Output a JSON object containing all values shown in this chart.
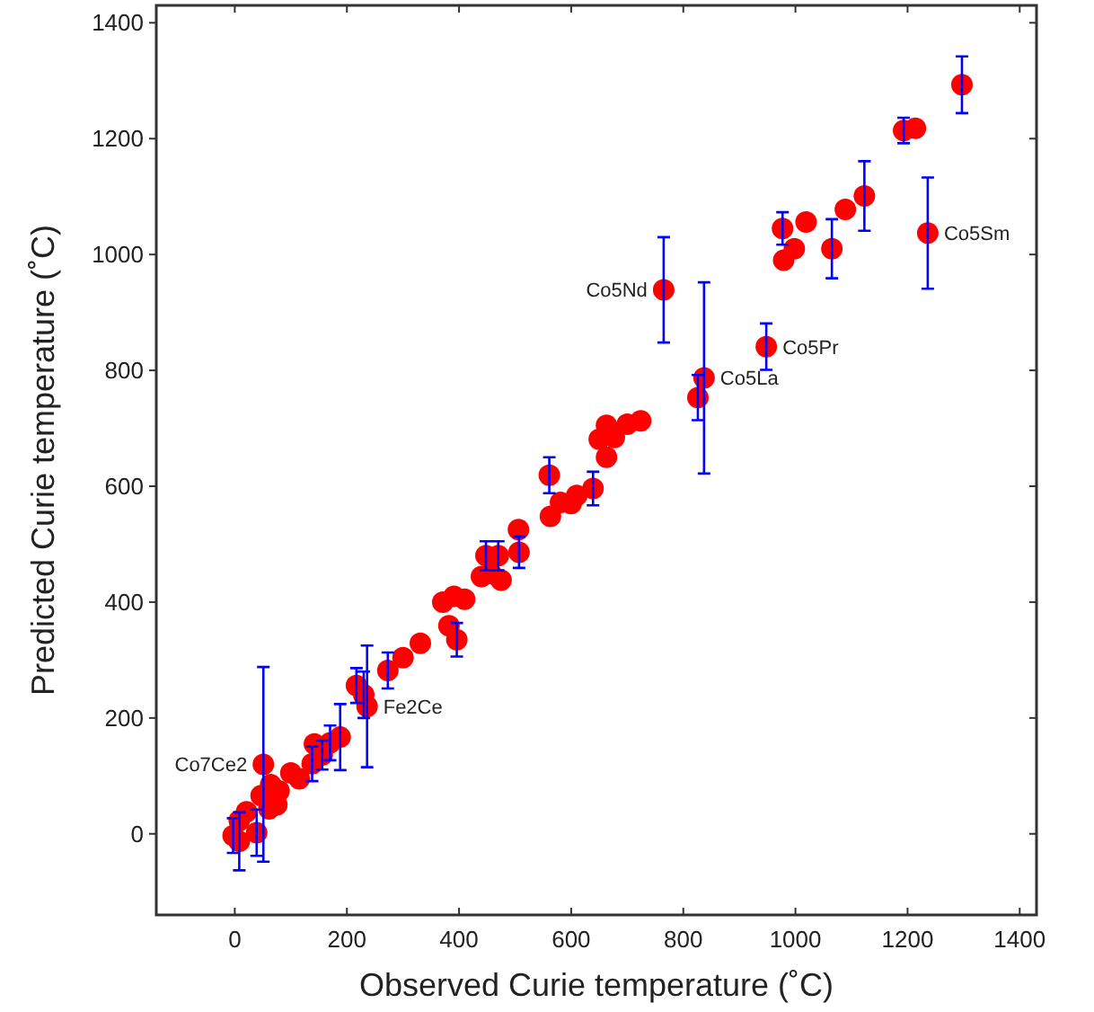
{
  "chart_data": {
    "type": "scatter",
    "xlabel": "Observed Curie temperature (˚C)",
    "ylabel": "Predicted Curie temperature (˚C)",
    "xlim": [
      -140,
      1430
    ],
    "ylim": [
      -140,
      1430
    ],
    "xticks": [
      0,
      200,
      400,
      600,
      800,
      1000,
      1200,
      1400
    ],
    "yticks": [
      0,
      200,
      400,
      600,
      800,
      1000,
      1200,
      1400
    ],
    "marker": "circle",
    "series": [
      {
        "color": "#ff0000",
        "x": [
          1297,
          1193,
          1214,
          1236,
          1123,
          1089,
          1019,
          977,
          998,
          979,
          1065,
          765,
          948,
          837,
          826,
          724,
          700,
          663,
          650,
          677,
          663,
          561,
          639,
          610,
          581,
          600,
          563,
          506,
          507,
          448,
          470,
          440,
          475,
          457,
          371,
          391,
          410,
          396,
          382,
          331,
          300,
          273,
          217,
          236,
          230,
          188,
          170,
          142,
          156,
          138,
          115,
          100,
          51,
          79,
          75,
          61,
          47,
          64,
          21,
          8,
          -3,
          8,
          39
        ],
        "values": [
          1293,
          1214,
          1218,
          1037,
          1101,
          1078,
          1056,
          1045,
          1010,
          990,
          1010,
          939,
          841,
          787,
          753,
          713,
          707,
          705,
          681,
          684,
          650,
          619,
          596,
          584,
          572,
          570,
          548,
          525,
          486,
          480,
          480,
          444,
          438,
          449,
          400,
          410,
          405,
          335,
          359,
          329,
          304,
          282,
          256,
          220,
          240,
          167,
          157,
          155,
          136,
          121,
          95,
          105,
          120,
          74,
          50,
          43,
          66,
          85,
          38,
          23,
          -3,
          -13,
          2
        ],
        "errors": [
          49,
          22,
          null,
          96,
          60,
          null,
          null,
          28,
          null,
          null,
          51,
          91,
          40,
          165,
          39,
          null,
          null,
          null,
          null,
          null,
          null,
          31,
          29,
          null,
          null,
          null,
          null,
          null,
          27,
          25,
          25,
          null,
          null,
          null,
          null,
          null,
          null,
          29,
          null,
          null,
          null,
          31,
          30,
          105,
          40,
          57,
          30,
          null,
          25,
          30,
          null,
          null,
          168,
          null,
          null,
          null,
          null,
          null,
          null,
          null,
          30,
          50,
          40
        ]
      }
    ],
    "annotations": [
      {
        "text": "Co5Sm",
        "x": 1236,
        "y": 1037
      },
      {
        "text": "Co5Nd",
        "x": 765,
        "y": 939
      },
      {
        "text": "Co5Pr",
        "x": 948,
        "y": 841
      },
      {
        "text": "Co5La",
        "x": 837,
        "y": 787
      },
      {
        "text": "Fe2Ce",
        "x": 236,
        "y": 220
      },
      {
        "text": "Co7Ce2",
        "x": 51,
        "y": 120
      }
    ]
  }
}
